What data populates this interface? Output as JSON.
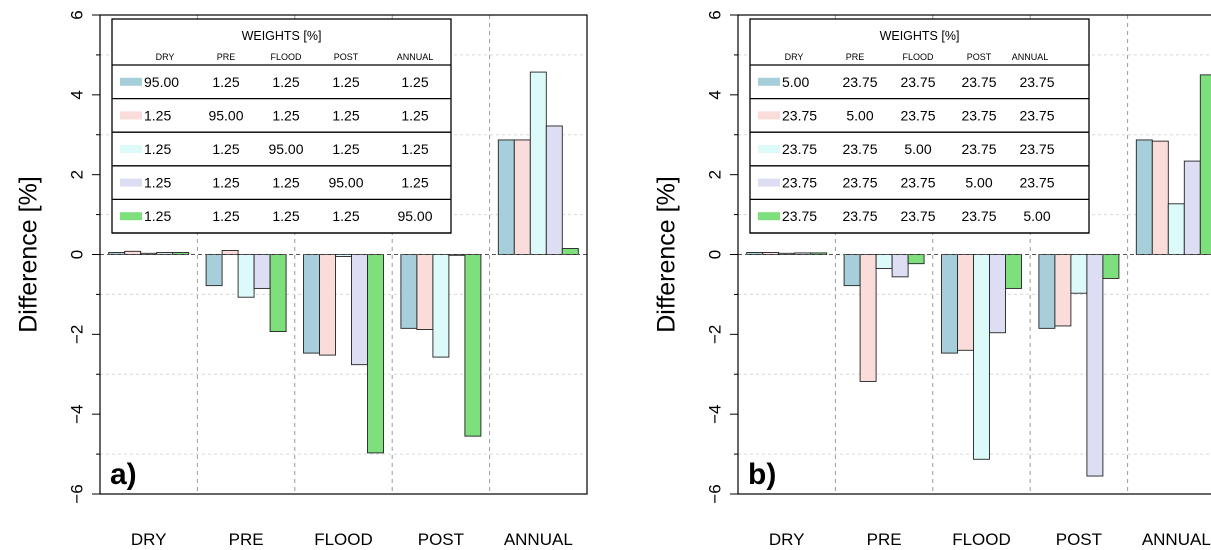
{
  "chart_data": [
    {
      "type": "bar",
      "panel_label": "a)",
      "ylabel": "Difference  [%]",
      "ylim": [
        -6,
        6
      ],
      "yticks": [
        "6",
        "4",
        "2",
        "0",
        "−2",
        "−4",
        "−6"
      ],
      "categories": [
        "DRY",
        "PRE",
        "FLOOD",
        "POST",
        "ANNUAL"
      ],
      "grid": true,
      "series": [
        {
          "color": "#a6cfdb",
          "values": [
            0.05,
            -0.78,
            -2.47,
            -1.85,
            2.87
          ]
        },
        {
          "color": "#fadddb",
          "values": [
            0.08,
            0.1,
            -2.52,
            -1.88,
            2.87
          ]
        },
        {
          "color": "#ddfafa",
          "values": [
            0.03,
            -1.07,
            -0.05,
            -2.57,
            4.57
          ]
        },
        {
          "color": "#ddddf3",
          "values": [
            0.05,
            -0.85,
            -2.76,
            0.0,
            3.22
          ]
        },
        {
          "color": "#7de07d",
          "values": [
            0.05,
            -1.93,
            -4.97,
            -4.55,
            0.15
          ]
        }
      ],
      "table": {
        "title": "WEIGHTS   [%]",
        "headers": [
          "DRY",
          "PRE",
          "FLOOD",
          "POST",
          "ANNUAL"
        ],
        "rows": [
          [
            "95.00",
            "1.25",
            "1.25",
            "1.25",
            "1.25"
          ],
          [
            "1.25",
            "95.00",
            "1.25",
            "1.25",
            "1.25"
          ],
          [
            "1.25",
            "1.25",
            "95.00",
            "1.25",
            "1.25"
          ],
          [
            "1.25",
            "1.25",
            "1.25",
            "95.00",
            "1.25"
          ],
          [
            "1.25",
            "1.25",
            "1.25",
            "1.25",
            "95.00"
          ]
        ]
      }
    },
    {
      "type": "bar",
      "panel_label": "b)",
      "ylabel": "Difference  [%]",
      "ylim": [
        -6,
        6
      ],
      "yticks": [
        "6",
        "4",
        "2",
        "0",
        "−2",
        "−4",
        "−6"
      ],
      "categories": [
        "DRY",
        "PRE",
        "FLOOD",
        "POST",
        "ANNUAL"
      ],
      "grid": true,
      "series": [
        {
          "color": "#a6cfdb",
          "values": [
            0.05,
            -0.78,
            -2.47,
            -1.85,
            2.87
          ]
        },
        {
          "color": "#fadddb",
          "values": [
            0.05,
            -3.18,
            -2.4,
            -1.79,
            2.84
          ]
        },
        {
          "color": "#ddfafa",
          "values": [
            0.03,
            -0.35,
            -5.13,
            -0.97,
            1.27
          ]
        },
        {
          "color": "#ddddf3",
          "values": [
            0.04,
            -0.56,
            -1.96,
            -5.55,
            2.34
          ]
        },
        {
          "color": "#7de07d",
          "values": [
            0.04,
            -0.23,
            -0.85,
            -0.6,
            4.5
          ]
        }
      ],
      "table": {
        "title": "WEIGHTS   [%]",
        "headers": [
          "DRY",
          "PRE",
          "FLOOD",
          "POST",
          "ANNUAL"
        ],
        "rows": [
          [
            "5.00",
            "23.75",
            "23.75",
            "23.75",
            "23.75"
          ],
          [
            "23.75",
            "5.00",
            "23.75",
            "23.75",
            "23.75"
          ],
          [
            "23.75",
            "23.75",
            "5.00",
            "23.75",
            "23.75"
          ],
          [
            "23.75",
            "23.75",
            "23.75",
            "5.00",
            "23.75"
          ],
          [
            "23.75",
            "23.75",
            "23.75",
            "23.75",
            "5.00"
          ]
        ]
      }
    }
  ]
}
